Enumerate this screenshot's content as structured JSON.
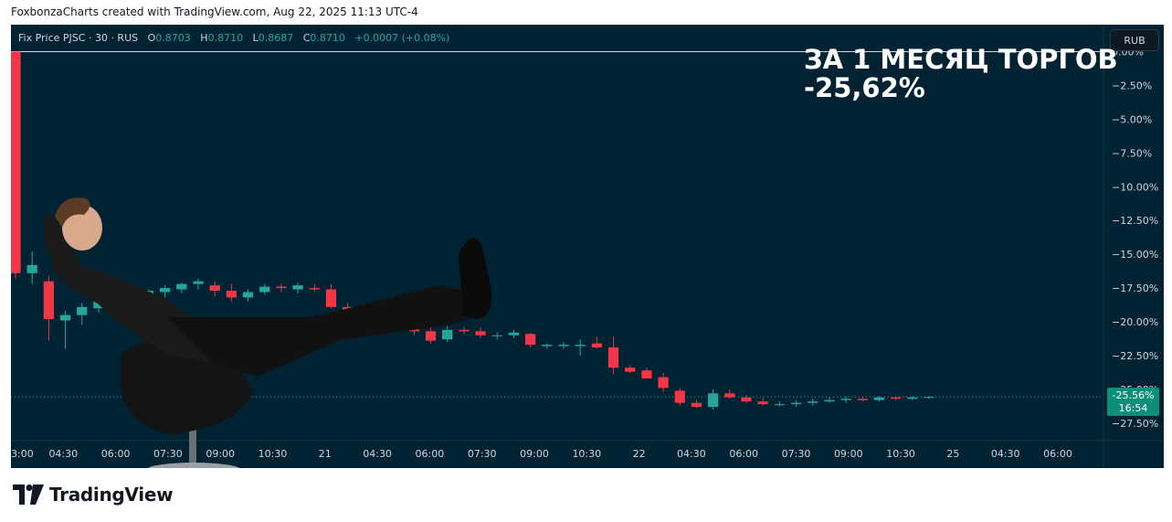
{
  "header": {
    "attribution": "FoxbonzaCharts created with TradingView.com, Aug 22, 2025 11:13 UTC-4"
  },
  "legend": {
    "symbol": "Fix Price PJSC · 30 · RUS",
    "open_label": "O",
    "open": "0.8703",
    "high_label": "H",
    "high": "0.8710",
    "low_label": "L",
    "low": "0.8687",
    "close_label": "C",
    "close": "0.8710",
    "change": "+0.0007 (+0.08%)"
  },
  "currency_button": "RUB",
  "headline": {
    "line1": "ЗА 1 МЕСЯЦ ТОРГОВ",
    "line2": "-25,62%"
  },
  "last_price": {
    "value": "-25.56%",
    "countdown": "16:54"
  },
  "footer": {
    "brand": "TradingView"
  },
  "colors": {
    "background": "#002333",
    "up": "#26a69a",
    "down": "#f23645",
    "text": "#d1d4dc"
  },
  "chart_data": {
    "type": "candlestick",
    "scale": "percent",
    "y_axis_ticks": [
      "0.00%",
      "−2.50%",
      "−5.00%",
      "−7.50%",
      "−10.00%",
      "−12.50%",
      "−15.00%",
      "−17.50%",
      "−20.00%",
      "−22.50%",
      "−25.00%",
      "−27.50%"
    ],
    "y_tick_values": [
      0,
      -2.5,
      -5,
      -7.5,
      -10,
      -12.5,
      -15,
      -17.5,
      -20,
      -22.5,
      -25,
      -27.5
    ],
    "ylim": [
      -28.8,
      2.0
    ],
    "x_axis_ticks": [
      "3:00",
      "04:30",
      "06:00",
      "07:30",
      "09:00",
      "10:30",
      "21",
      "04:30",
      "06:00",
      "07:30",
      "09:00",
      "10:30",
      "22",
      "04:30",
      "06:00",
      "07:30",
      "09:00",
      "10:30",
      "25",
      "04:30",
      "06:00"
    ],
    "reference_line": 0.0,
    "last_value": -25.56,
    "candles": [
      {
        "o": 0.0,
        "h": 0.0,
        "l": -16.8,
        "c": -16.4
      },
      {
        "o": -16.4,
        "h": -14.8,
        "l": -17.2,
        "c": -15.8
      },
      {
        "o": -17.0,
        "h": -16.6,
        "l": -21.4,
        "c": -19.8
      },
      {
        "o": -19.9,
        "h": -19.2,
        "l": -22.0,
        "c": -19.5
      },
      {
        "o": -19.5,
        "h": -18.6,
        "l": -20.2,
        "c": -18.9
      },
      {
        "o": -19.0,
        "h": -18.1,
        "l": -19.3,
        "c": -18.3
      },
      {
        "o": -18.3,
        "h": -17.4,
        "l": -18.8,
        "c": -17.8
      },
      {
        "o": -17.8,
        "h": -17.2,
        "l": -18.5,
        "c": -17.5
      },
      {
        "o": -18.9,
        "h": -17.6,
        "l": -19.3,
        "c": -17.7
      },
      {
        "o": -17.8,
        "h": -17.3,
        "l": -18.2,
        "c": -17.5
      },
      {
        "o": -17.6,
        "h": -17.1,
        "l": -17.9,
        "c": -17.2
      },
      {
        "o": -17.2,
        "h": -16.8,
        "l": -17.6,
        "c": -17.0
      },
      {
        "o": -17.3,
        "h": -17.0,
        "l": -18.1,
        "c": -17.7
      },
      {
        "o": -17.7,
        "h": -17.2,
        "l": -18.5,
        "c": -18.2
      },
      {
        "o": -18.2,
        "h": -17.6,
        "l": -18.5,
        "c": -17.8
      },
      {
        "o": -17.8,
        "h": -17.2,
        "l": -18.0,
        "c": -17.4
      },
      {
        "o": -17.4,
        "h": -17.2,
        "l": -17.8,
        "c": -17.5
      },
      {
        "o": -17.6,
        "h": -17.1,
        "l": -17.9,
        "c": -17.3
      },
      {
        "o": -17.5,
        "h": -17.2,
        "l": -17.8,
        "c": -17.6
      },
      {
        "o": -17.6,
        "h": -17.2,
        "l": -19.0,
        "c": -18.9
      },
      {
        "o": -18.9,
        "h": -18.6,
        "l": -19.4,
        "c": -19.2
      },
      {
        "o": -19.2,
        "h": -18.9,
        "l": -19.8,
        "c": -19.6
      },
      {
        "o": -19.6,
        "h": -19.3,
        "l": -20.4,
        "c": -20.2
      },
      {
        "o": -20.2,
        "h": -19.9,
        "l": -20.7,
        "c": -20.4
      },
      {
        "o": -20.4,
        "h": -20.1,
        "l": -21.0,
        "c": -20.7
      },
      {
        "o": -20.7,
        "h": -20.4,
        "l": -21.6,
        "c": -21.4
      },
      {
        "o": -21.3,
        "h": -20.3,
        "l": -21.5,
        "c": -20.6
      },
      {
        "o": -20.6,
        "h": -20.4,
        "l": -20.9,
        "c": -20.7
      },
      {
        "o": -20.7,
        "h": -20.4,
        "l": -21.2,
        "c": -21.0
      },
      {
        "o": -21.0,
        "h": -20.8,
        "l": -21.3,
        "c": -21.0
      },
      {
        "o": -21.0,
        "h": -20.6,
        "l": -21.2,
        "c": -20.8
      },
      {
        "o": -20.9,
        "h": -20.8,
        "l": -21.9,
        "c": -21.7
      },
      {
        "o": -21.8,
        "h": -21.6,
        "l": -22.0,
        "c": -21.7
      },
      {
        "o": -21.8,
        "h": -21.5,
        "l": -22.0,
        "c": -21.7
      },
      {
        "o": -21.8,
        "h": -21.3,
        "l": -22.5,
        "c": -21.7
      },
      {
        "o": -21.6,
        "h": -21.1,
        "l": -22.0,
        "c": -21.9
      },
      {
        "o": -21.9,
        "h": -21.1,
        "l": -23.9,
        "c": -23.4
      },
      {
        "o": -23.4,
        "h": -23.2,
        "l": -23.8,
        "c": -23.7
      },
      {
        "o": -23.6,
        "h": -23.4,
        "l": -24.2,
        "c": -24.2
      },
      {
        "o": -24.1,
        "h": -23.8,
        "l": -25.2,
        "c": -24.9
      },
      {
        "o": -25.1,
        "h": -24.9,
        "l": -26.2,
        "c": -26.0
      },
      {
        "o": -26.0,
        "h": -25.8,
        "l": -26.4,
        "c": -26.3
      },
      {
        "o": -26.3,
        "h": -25.0,
        "l": -26.5,
        "c": -25.3
      },
      {
        "o": -25.3,
        "h": -25.0,
        "l": -25.7,
        "c": -25.6
      },
      {
        "o": -25.6,
        "h": -25.4,
        "l": -26.0,
        "c": -25.9
      },
      {
        "o": -25.9,
        "h": -25.6,
        "l": -26.2,
        "c": -26.1
      },
      {
        "o": -26.1,
        "h": -25.9,
        "l": -26.3,
        "c": -26.1
      },
      {
        "o": -26.1,
        "h": -25.8,
        "l": -26.3,
        "c": -26.0
      },
      {
        "o": -26.0,
        "h": -25.7,
        "l": -26.2,
        "c": -25.9
      },
      {
        "o": -25.9,
        "h": -25.6,
        "l": -26.0,
        "c": -25.8
      },
      {
        "o": -25.8,
        "h": -25.5,
        "l": -26.0,
        "c": -25.7
      },
      {
        "o": -25.7,
        "h": -25.5,
        "l": -25.9,
        "c": -25.8
      },
      {
        "o": -25.8,
        "h": -25.5,
        "l": -25.9,
        "c": -25.6
      },
      {
        "o": -25.6,
        "h": -25.5,
        "l": -25.8,
        "c": -25.7
      },
      {
        "o": -25.7,
        "h": -25.5,
        "l": -25.8,
        "c": -25.6
      },
      {
        "o": -25.6,
        "h": -25.5,
        "l": -25.7,
        "c": -25.56
      }
    ]
  }
}
